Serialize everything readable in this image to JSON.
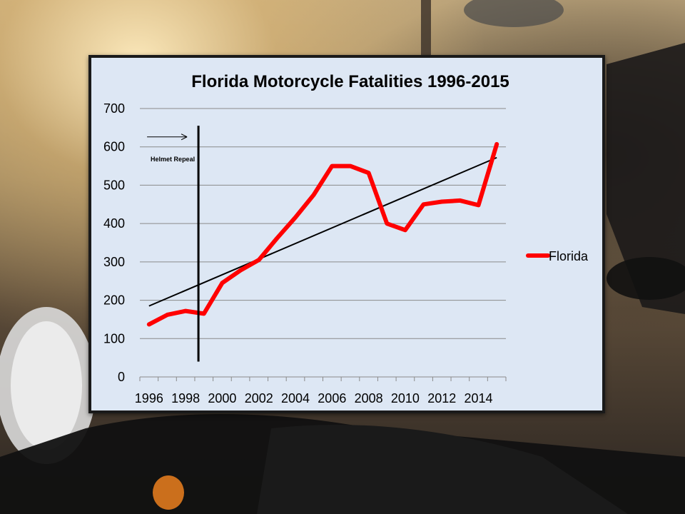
{
  "chart_data": {
    "type": "line",
    "title": "Florida Motorcycle Fatalities 1996-2015",
    "xlabel": "",
    "ylabel": "",
    "ylim": [
      0,
      700
    ],
    "yticks": [
      0,
      100,
      200,
      300,
      400,
      500,
      600,
      700
    ],
    "xlim": [
      1995.5,
      2015.5
    ],
    "xtick_labels": [
      "1996",
      "1998",
      "2000",
      "2002",
      "2004",
      "2006",
      "2008",
      "2010",
      "2012",
      "2014"
    ],
    "grid": true,
    "legend": "right",
    "series": [
      {
        "name": "Florida",
        "color": "#ff0000",
        "x": [
          1996,
          1997,
          1998,
          1999,
          2000,
          2001,
          2002,
          2003,
          2004,
          2005,
          2006,
          2007,
          2008,
          2009,
          2010,
          2011,
          2012,
          2013,
          2014,
          2015
        ],
        "y": [
          137,
          162,
          172,
          165,
          245,
          278,
          305,
          362,
          416,
          475,
          550,
          550,
          532,
          400,
          383,
          450,
          457,
          460,
          448,
          607
        ]
      }
    ],
    "trendline": {
      "color": "#000000",
      "x": [
        1996,
        2015
      ],
      "y": [
        185,
        572
      ]
    },
    "annotations": [
      {
        "text": "Helmet Repeal",
        "x": 1998.7,
        "y_range": [
          40,
          655
        ]
      }
    ]
  }
}
